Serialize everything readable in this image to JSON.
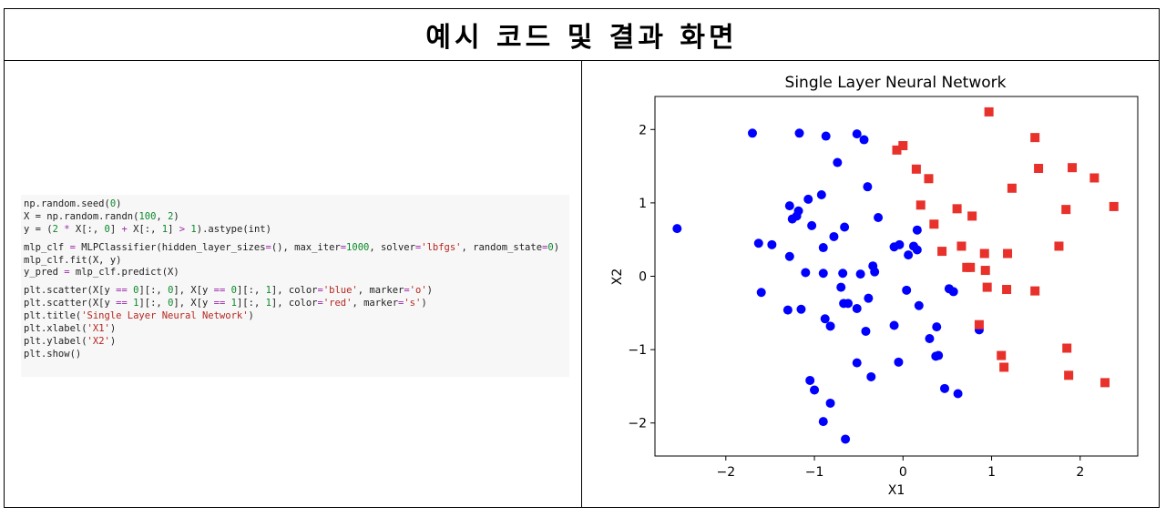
{
  "header": {
    "title": "예시 코드 및 결과 화면"
  },
  "code": {
    "lines": [
      [
        {
          "t": "np.random.seed(",
          "c": "fn"
        },
        {
          "t": "0",
          "c": "num"
        },
        {
          "t": ")",
          "c": "fn"
        }
      ],
      [
        {
          "t": "X = np.random.randn(",
          "c": "fn"
        },
        {
          "t": "100",
          "c": "num"
        },
        {
          "t": ", ",
          "c": "fn"
        },
        {
          "t": "2",
          "c": "num"
        },
        {
          "t": ")",
          "c": "fn"
        }
      ],
      [
        {
          "t": "y = (",
          "c": "fn"
        },
        {
          "t": "2",
          "c": "num"
        },
        {
          "t": " ",
          "c": "fn"
        },
        {
          "t": "*",
          "c": "op"
        },
        {
          "t": " X[:, ",
          "c": "fn"
        },
        {
          "t": "0",
          "c": "num"
        },
        {
          "t": "] ",
          "c": "fn"
        },
        {
          "t": "+",
          "c": "op"
        },
        {
          "t": " X[:, ",
          "c": "fn"
        },
        {
          "t": "1",
          "c": "num"
        },
        {
          "t": "] ",
          "c": "fn"
        },
        {
          "t": ">",
          "c": "op"
        },
        {
          "t": " ",
          "c": "fn"
        },
        {
          "t": "1",
          "c": "num"
        },
        {
          "t": ").astype(int)",
          "c": "fn"
        }
      ],
      [],
      [
        {
          "t": "mlp_clf ",
          "c": "fn"
        },
        {
          "t": "=",
          "c": "op"
        },
        {
          "t": " MLPClassifier(hidden_layer_sizes",
          "c": "fn"
        },
        {
          "t": "=",
          "c": "op"
        },
        {
          "t": "(), max_iter",
          "c": "fn"
        },
        {
          "t": "=",
          "c": "op"
        },
        {
          "t": "1000",
          "c": "num"
        },
        {
          "t": ", solver",
          "c": "fn"
        },
        {
          "t": "=",
          "c": "op"
        },
        {
          "t": "'lbfgs'",
          "c": "str"
        },
        {
          "t": ", random_state",
          "c": "fn"
        },
        {
          "t": "=",
          "c": "op"
        },
        {
          "t": "0",
          "c": "num"
        },
        {
          "t": ")",
          "c": "fn"
        }
      ],
      [
        {
          "t": "mlp_clf.fit(X, y)",
          "c": "fn"
        }
      ],
      [
        {
          "t": "y_pred ",
          "c": "fn"
        },
        {
          "t": "=",
          "c": "op"
        },
        {
          "t": " mlp_clf.predict(X)",
          "c": "fn"
        }
      ],
      [],
      [
        {
          "t": "plt.scatter(X[y ",
          "c": "fn"
        },
        {
          "t": "==",
          "c": "op"
        },
        {
          "t": " ",
          "c": "fn"
        },
        {
          "t": "0",
          "c": "num"
        },
        {
          "t": "][:, ",
          "c": "fn"
        },
        {
          "t": "0",
          "c": "num"
        },
        {
          "t": "], X[y ",
          "c": "fn"
        },
        {
          "t": "==",
          "c": "op"
        },
        {
          "t": " ",
          "c": "fn"
        },
        {
          "t": "0",
          "c": "num"
        },
        {
          "t": "][:, ",
          "c": "fn"
        },
        {
          "t": "1",
          "c": "num"
        },
        {
          "t": "], color",
          "c": "fn"
        },
        {
          "t": "=",
          "c": "op"
        },
        {
          "t": "'blue'",
          "c": "str"
        },
        {
          "t": ", marker",
          "c": "fn"
        },
        {
          "t": "=",
          "c": "op"
        },
        {
          "t": "'o'",
          "c": "str"
        },
        {
          "t": ")",
          "c": "fn"
        }
      ],
      [
        {
          "t": "plt.scatter(X[y ",
          "c": "fn"
        },
        {
          "t": "==",
          "c": "op"
        },
        {
          "t": " ",
          "c": "fn"
        },
        {
          "t": "1",
          "c": "num"
        },
        {
          "t": "][:, ",
          "c": "fn"
        },
        {
          "t": "0",
          "c": "num"
        },
        {
          "t": "], X[y ",
          "c": "fn"
        },
        {
          "t": "==",
          "c": "op"
        },
        {
          "t": " ",
          "c": "fn"
        },
        {
          "t": "1",
          "c": "num"
        },
        {
          "t": "][:, ",
          "c": "fn"
        },
        {
          "t": "1",
          "c": "num"
        },
        {
          "t": "], color",
          "c": "fn"
        },
        {
          "t": "=",
          "c": "op"
        },
        {
          "t": "'red'",
          "c": "str"
        },
        {
          "t": ", marker",
          "c": "fn"
        },
        {
          "t": "=",
          "c": "op"
        },
        {
          "t": "'s'",
          "c": "str"
        },
        {
          "t": ")",
          "c": "fn"
        }
      ],
      [
        {
          "t": "plt.title(",
          "c": "fn"
        },
        {
          "t": "'Single Layer Neural Network'",
          "c": "str"
        },
        {
          "t": ")",
          "c": "fn"
        }
      ],
      [
        {
          "t": "plt.xlabel(",
          "c": "fn"
        },
        {
          "t": "'X1'",
          "c": "str"
        },
        {
          "t": ")",
          "c": "fn"
        }
      ],
      [
        {
          "t": "plt.ylabel(",
          "c": "fn"
        },
        {
          "t": "'X2'",
          "c": "str"
        },
        {
          "t": ")",
          "c": "fn"
        }
      ],
      [
        {
          "t": "plt.show()",
          "c": "fn"
        }
      ]
    ]
  },
  "chart_data": {
    "type": "scatter",
    "title": "Single Layer Neural Network",
    "xlabel": "X1",
    "ylabel": "X2",
    "xlim": [
      -2.8,
      2.65
    ],
    "ylim": [
      -2.45,
      2.45
    ],
    "xticks": [
      -2,
      -1,
      0,
      1,
      2
    ],
    "yticks": [
      -2,
      -1,
      0,
      1,
      2
    ],
    "xtick_labels": [
      "−2",
      "−1",
      "0",
      "1",
      "2"
    ],
    "ytick_labels": [
      "−2",
      "−1",
      "0",
      "1",
      "2"
    ],
    "grid": false,
    "series": [
      {
        "color": "#0000ff",
        "marker": "circle",
        "points": [
          [
            -2.55,
            0.65
          ],
          [
            -1.7,
            1.95
          ],
          [
            -1.63,
            0.45
          ],
          [
            -1.6,
            -0.22
          ],
          [
            -1.48,
            0.43
          ],
          [
            -1.3,
            -0.46
          ],
          [
            -1.28,
            0.27
          ],
          [
            -1.28,
            0.96
          ],
          [
            -1.25,
            0.78
          ],
          [
            -1.2,
            0.82
          ],
          [
            -1.18,
            0.89
          ],
          [
            -1.17,
            1.95
          ],
          [
            -1.15,
            -0.45
          ],
          [
            -1.1,
            0.05
          ],
          [
            -1.07,
            1.05
          ],
          [
            -1.05,
            -1.42
          ],
          [
            -1.03,
            0.69
          ],
          [
            -1.0,
            -1.55
          ],
          [
            -0.92,
            1.11
          ],
          [
            -0.9,
            0.04
          ],
          [
            -0.9,
            0.39
          ],
          [
            -0.9,
            -1.98
          ],
          [
            -0.88,
            -0.58
          ],
          [
            -0.87,
            1.91
          ],
          [
            -0.82,
            -0.68
          ],
          [
            -0.82,
            -1.73
          ],
          [
            -0.78,
            0.54
          ],
          [
            -0.74,
            1.55
          ],
          [
            -0.7,
            -0.15
          ],
          [
            -0.68,
            0.04
          ],
          [
            -0.67,
            -0.37
          ],
          [
            -0.66,
            0.67
          ],
          [
            -0.65,
            -2.22
          ],
          [
            -0.62,
            -0.37
          ],
          [
            -0.52,
            -0.44
          ],
          [
            -0.52,
            -1.18
          ],
          [
            -0.52,
            1.94
          ],
          [
            -0.48,
            0.03
          ],
          [
            -0.44,
            1.86
          ],
          [
            -0.42,
            -0.75
          ],
          [
            -0.4,
            1.22
          ],
          [
            -0.39,
            -0.3
          ],
          [
            -0.36,
            -1.37
          ],
          [
            -0.34,
            0.14
          ],
          [
            -0.32,
            0.06
          ],
          [
            -0.28,
            0.8
          ],
          [
            -0.1,
            -0.67
          ],
          [
            -0.1,
            0.4
          ],
          [
            -0.05,
            -1.17
          ],
          [
            -0.04,
            0.43
          ],
          [
            0.04,
            -0.19
          ],
          [
            0.06,
            0.29
          ],
          [
            0.12,
            0.41
          ],
          [
            0.16,
            0.36
          ],
          [
            0.16,
            0.63
          ],
          [
            0.18,
            -0.4
          ],
          [
            0.3,
            -0.85
          ],
          [
            0.37,
            -1.09
          ],
          [
            0.38,
            -0.69
          ],
          [
            0.4,
            -1.08
          ],
          [
            0.47,
            -1.53
          ],
          [
            0.52,
            -0.17
          ],
          [
            0.57,
            -0.21
          ],
          [
            0.62,
            -1.6
          ],
          [
            0.86,
            -0.73
          ]
        ]
      },
      {
        "color": "#e8312a",
        "marker": "square",
        "points": [
          [
            -0.07,
            1.72
          ],
          [
            0.0,
            1.78
          ],
          [
            0.15,
            1.46
          ],
          [
            0.2,
            0.97
          ],
          [
            0.29,
            1.33
          ],
          [
            0.35,
            0.71
          ],
          [
            0.44,
            0.34
          ],
          [
            0.61,
            0.92
          ],
          [
            0.66,
            0.41
          ],
          [
            0.72,
            0.12
          ],
          [
            0.76,
            0.12
          ],
          [
            0.78,
            0.82
          ],
          [
            0.86,
            -0.66
          ],
          [
            0.92,
            0.31
          ],
          [
            0.93,
            0.08
          ],
          [
            0.95,
            -0.15
          ],
          [
            0.97,
            2.24
          ],
          [
            1.11,
            -1.08
          ],
          [
            1.14,
            -1.24
          ],
          [
            1.17,
            -0.18
          ],
          [
            1.18,
            0.31
          ],
          [
            1.23,
            1.2
          ],
          [
            1.49,
            1.89
          ],
          [
            1.49,
            -0.2
          ],
          [
            1.53,
            1.47
          ],
          [
            1.76,
            0.41
          ],
          [
            1.84,
            0.91
          ],
          [
            1.85,
            -0.98
          ],
          [
            1.87,
            -1.35
          ],
          [
            1.91,
            1.48
          ],
          [
            2.16,
            1.34
          ],
          [
            2.28,
            -1.45
          ],
          [
            2.38,
            0.95
          ]
        ]
      }
    ]
  }
}
